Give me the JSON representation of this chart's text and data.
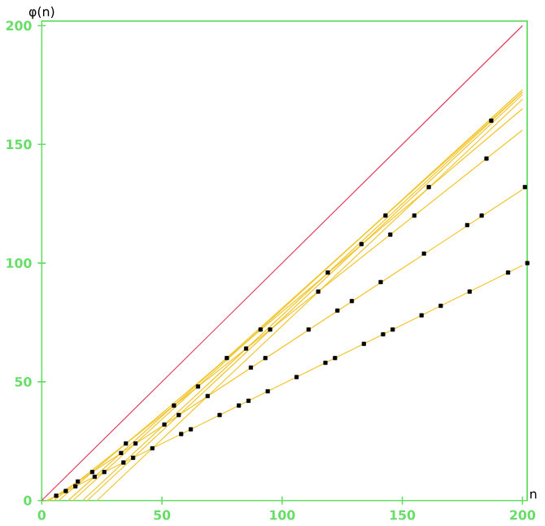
{
  "chart_data": {
    "type": "line",
    "xlabel": "n",
    "ylabel": "φ(n)",
    "xlim": [
      0,
      202
    ],
    "ylim": [
      0,
      202
    ],
    "xticks": [
      0,
      50,
      100,
      150,
      200
    ],
    "yticks": [
      0,
      50,
      100,
      150,
      200
    ],
    "grid": false,
    "series": [
      {
        "color": "#e03c5a",
        "x": [
          0,
          200
        ],
        "values": [
          0,
          200
        ]
      },
      {
        "color": "#f2c428",
        "x": [
          2,
          200
        ],
        "values": [
          0,
          99
        ]
      },
      {
        "color": "#f2c428",
        "x": [
          3,
          200
        ],
        "values": [
          0,
          131
        ]
      },
      {
        "color": "#f2c428",
        "x": [
          5,
          200
        ],
        "values": [
          0,
          156
        ]
      },
      {
        "color": "#f2c428",
        "x": [
          7,
          200
        ],
        "values": [
          0,
          165
        ]
      },
      {
        "color": "#f2c428",
        "x": [
          11,
          200
        ],
        "values": [
          0,
          172
        ]
      },
      {
        "color": "#f2c428",
        "x": [
          13,
          200
        ],
        "values": [
          0,
          173
        ]
      },
      {
        "color": "#f2c428",
        "x": [
          17,
          200
        ],
        "values": [
          0,
          172
        ]
      },
      {
        "color": "#f2c428",
        "x": [
          19,
          200
        ],
        "values": [
          0,
          171
        ]
      },
      {
        "color": "#f2c428",
        "x": [
          23,
          200
        ],
        "values": [
          0,
          169
        ]
      },
      {
        "type": "scatter",
        "color": "#000000",
        "marker": "square",
        "x": [
          6,
          10,
          14,
          22,
          26,
          34,
          38,
          46,
          58,
          62,
          74,
          82,
          86,
          94,
          106,
          118,
          122,
          134,
          142,
          146,
          158,
          166,
          178,
          194,
          202,
          15,
          21,
          33,
          39,
          51,
          57,
          69,
          87,
          93,
          111,
          123,
          129,
          141,
          159,
          177,
          183,
          201,
          35,
          55,
          65,
          85,
          95,
          115,
          145,
          155,
          185,
          77,
          91,
          119,
          133,
          161,
          143,
          187
        ],
        "values": [
          2,
          4,
          6,
          10,
          12,
          16,
          18,
          22,
          28,
          30,
          36,
          40,
          42,
          46,
          52,
          58,
          60,
          66,
          70,
          72,
          78,
          82,
          88,
          96,
          100,
          8,
          12,
          20,
          24,
          32,
          36,
          44,
          56,
          60,
          72,
          80,
          84,
          92,
          104,
          116,
          120,
          132,
          24,
          40,
          48,
          64,
          72,
          88,
          112,
          120,
          144,
          60,
          72,
          96,
          108,
          132,
          120,
          160
        ]
      }
    ]
  }
}
